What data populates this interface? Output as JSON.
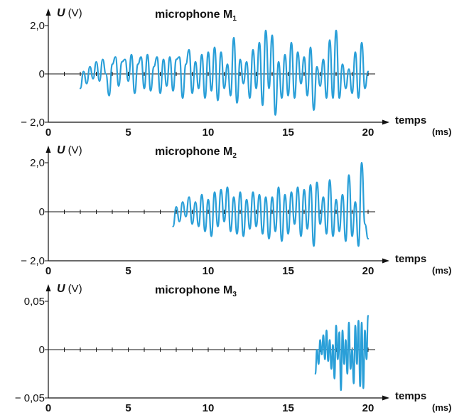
{
  "chart_data": [
    {
      "type": "line",
      "title": "microphone M",
      "title_subscript": "1",
      "ylabel_symbol": "U",
      "ylabel_unit": "(V)",
      "xlabel": "temps",
      "xlabel_unit": "(ms)",
      "xlim": [
        0,
        20
      ],
      "ylim": [
        -2.0,
        2.0
      ],
      "x_ticks": [
        0,
        5,
        10,
        15,
        20
      ],
      "x_tick_labels": [
        "0",
        "5",
        "10",
        "15",
        "20"
      ],
      "y_ticks": [
        2.0,
        0,
        -2.0
      ],
      "y_tick_labels": [
        "2,0",
        "0",
        "− 2,0"
      ],
      "grid": false,
      "color": "#2a9fd8",
      "series": [
        {
          "x": [
            2.0,
            2.2,
            2.4,
            2.6,
            2.8,
            3.0,
            3.2,
            3.4,
            3.6,
            3.8,
            4.0,
            4.2,
            4.4,
            4.6,
            4.8,
            5.0,
            5.2,
            5.4,
            5.6,
            5.8,
            6.0,
            6.2,
            6.4,
            6.6,
            6.8,
            7.0,
            7.2,
            7.4,
            7.6,
            7.8,
            8.0,
            8.2,
            8.4,
            8.6,
            8.8,
            9.0,
            9.2,
            9.4,
            9.6,
            9.8,
            10.0,
            10.2,
            10.4,
            10.6,
            10.8,
            11.0,
            11.2,
            11.4,
            11.6,
            11.8,
            12.0,
            12.2,
            12.4,
            12.6,
            12.8,
            13.0,
            13.2,
            13.4,
            13.6,
            13.8,
            14.0,
            14.2,
            14.4,
            14.6,
            14.8,
            15.0,
            15.2,
            15.4,
            15.6,
            15.8,
            16.0,
            16.2,
            16.4,
            16.6,
            16.8,
            17.0,
            17.2,
            17.4,
            17.6,
            17.8,
            18.0,
            18.2,
            18.4,
            18.6,
            18.8,
            19.0,
            19.2,
            19.4,
            19.6,
            19.8,
            20.0
          ],
          "y": [
            -0.6,
            0.1,
            -0.4,
            0.3,
            -0.2,
            0.5,
            -0.3,
            0.6,
            0.0,
            -0.9,
            0.4,
            0.7,
            -0.5,
            0.5,
            0.6,
            -0.3,
            0.8,
            -0.8,
            0.4,
            0.7,
            -0.6,
            0.8,
            -0.7,
            0.3,
            0.7,
            -0.8,
            0.6,
            -0.5,
            0.7,
            -0.7,
            0.6,
            0.7,
            -1.0,
            0.4,
            1.0,
            -0.8,
            0.5,
            -0.6,
            0.8,
            -1.0,
            0.9,
            -0.7,
            1.1,
            -1.1,
            0.9,
            -0.6,
            0.4,
            -0.9,
            1.5,
            -1.2,
            0.6,
            -0.4,
            0.5,
            -1.0,
            1.0,
            -0.6,
            1.3,
            -1.3,
            1.8,
            -0.6,
            1.6,
            -1.7,
            0.5,
            -1.0,
            0.8,
            -0.9,
            1.3,
            -1.0,
            0.9,
            -0.4,
            0.7,
            -0.9,
            1.1,
            -1.5,
            0.3,
            -0.5,
            0.6,
            -1.0,
            1.4,
            -1.0,
            1.8,
            -1.0,
            0.4,
            -0.6,
            0.2,
            -0.8,
            0.9,
            -1.0,
            1.3,
            -0.6,
            0.1
          ]
        }
      ]
    },
    {
      "type": "line",
      "title": "microphone M",
      "title_subscript": "2",
      "ylabel_symbol": "U",
      "ylabel_unit": "(V)",
      "xlabel": "temps",
      "xlabel_unit": "(ms)",
      "xlim": [
        0,
        20
      ],
      "ylim": [
        -2.0,
        2.0
      ],
      "x_ticks": [
        0,
        5,
        10,
        15,
        20
      ],
      "x_tick_labels": [
        "0",
        "5",
        "10",
        "15",
        "20"
      ],
      "y_ticks": [
        2.0,
        0,
        -2.0
      ],
      "y_tick_labels": [
        "2,0",
        "0",
        "− 2,0"
      ],
      "grid": false,
      "color": "#2a9fd8",
      "series": [
        {
          "x": [
            7.8,
            8.0,
            8.2,
            8.4,
            8.6,
            8.8,
            9.0,
            9.2,
            9.4,
            9.6,
            9.8,
            10.0,
            10.2,
            10.4,
            10.6,
            10.8,
            11.0,
            11.2,
            11.4,
            11.6,
            11.8,
            12.0,
            12.2,
            12.4,
            12.6,
            12.8,
            13.0,
            13.2,
            13.4,
            13.6,
            13.8,
            14.0,
            14.2,
            14.4,
            14.6,
            14.8,
            15.0,
            15.2,
            15.4,
            15.6,
            15.8,
            16.0,
            16.2,
            16.4,
            16.6,
            16.8,
            17.0,
            17.2,
            17.4,
            17.6,
            17.8,
            18.0,
            18.2,
            18.4,
            18.6,
            18.8,
            19.0,
            19.2,
            19.4,
            19.6,
            19.8,
            20.0
          ],
          "y": [
            -0.6,
            0.2,
            -0.4,
            0.4,
            -0.2,
            0.6,
            -0.5,
            0.4,
            -0.6,
            0.7,
            -0.8,
            0.5,
            -1.0,
            0.8,
            -0.6,
            0.9,
            -0.4,
            1.0,
            -0.8,
            0.6,
            -0.9,
            0.8,
            -1.0,
            0.5,
            -0.7,
            0.8,
            -0.6,
            0.7,
            -0.9,
            0.6,
            -1.1,
            0.6,
            -0.8,
            1.0,
            -1.2,
            0.7,
            -0.9,
            0.8,
            -0.5,
            1.0,
            -1.0,
            0.9,
            -0.7,
            1.1,
            -1.4,
            1.2,
            -0.5,
            0.6,
            -0.9,
            1.3,
            -1.0,
            0.5,
            -0.8,
            0.7,
            -1.2,
            1.5,
            -1.0,
            0.4,
            -1.4,
            2.0,
            -0.5,
            -1.1
          ]
        }
      ]
    },
    {
      "type": "line",
      "title": "microphone M",
      "title_subscript": "3",
      "ylabel_symbol": "U",
      "ylabel_unit": "(V)",
      "xlabel": "temps",
      "xlabel_unit": "(ms)",
      "xlim": [
        0,
        20
      ],
      "ylim": [
        -0.05,
        0.05
      ],
      "x_ticks": [
        0,
        5,
        10,
        15,
        20
      ],
      "x_tick_labels": [
        "0",
        "5",
        "10",
        "15",
        "20"
      ],
      "y_ticks": [
        0.05,
        0,
        -0.05
      ],
      "y_tick_labels": [
        "0,05",
        "0",
        "− 0,05"
      ],
      "grid": false,
      "color": "#2a9fd8",
      "series": [
        {
          "x": [
            16.7,
            16.8,
            16.9,
            17.0,
            17.1,
            17.2,
            17.3,
            17.4,
            17.5,
            17.6,
            17.7,
            17.8,
            17.9,
            18.0,
            18.1,
            18.2,
            18.3,
            18.4,
            18.5,
            18.6,
            18.7,
            18.8,
            18.9,
            19.0,
            19.1,
            19.2,
            19.3,
            19.4,
            19.5,
            19.6,
            19.7,
            19.8,
            19.9,
            20.0
          ],
          "y": [
            -0.025,
            0.0,
            -0.015,
            0.01,
            -0.005,
            0.015,
            -0.01,
            0.02,
            -0.012,
            0.01,
            -0.02,
            0.005,
            -0.03,
            0.025,
            -0.01,
            0.018,
            -0.042,
            0.02,
            -0.015,
            0.01,
            -0.025,
            0.028,
            -0.02,
            0.0,
            -0.035,
            0.025,
            -0.015,
            0.03,
            -0.038,
            0.028,
            -0.04,
            0.02,
            -0.01,
            0.035
          ]
        }
      ]
    }
  ]
}
